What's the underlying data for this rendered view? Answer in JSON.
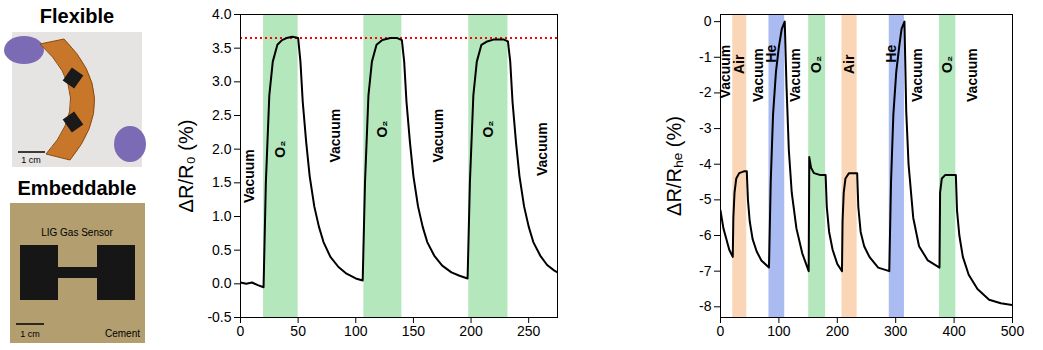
{
  "photos": [
    {
      "title": "Flexible",
      "scale_bar": "1 cm"
    },
    {
      "title": "Embeddable",
      "scale_bar": "1 cm",
      "labels": [
        "LIG Gas Sensor",
        "Cement"
      ]
    }
  ],
  "chart_data": [
    {
      "type": "line",
      "ylabel": "ΔR/R₀ (%)",
      "xlim": [
        0,
        275
      ],
      "xticks": [
        0,
        50,
        100,
        150,
        200,
        250
      ],
      "ylim": [
        -0.5,
        4.0
      ],
      "yticks": [
        -0.5,
        {
          "value": 0,
          "label": "0.0"
        },
        0.5,
        {
          "value": 1,
          "label": "1.0"
        },
        1.5,
        {
          "value": 2,
          "label": "2.0"
        },
        2.5,
        {
          "value": 3,
          "label": "3.0"
        },
        3.5,
        {
          "value": 4,
          "label": "4.0"
        }
      ],
      "bands": [
        {
          "x1": 20,
          "x2": 50,
          "color": "#5cc96b"
        },
        {
          "x1": 107,
          "x2": 140,
          "color": "#5cc96b"
        },
        {
          "x1": 198,
          "x2": 232,
          "color": "#5cc96b"
        }
      ],
      "reference_lines": [
        {
          "y": 3.65,
          "color": "#ff0000",
          "line_style": "dotted"
        }
      ],
      "annotations": [
        {
          "text": "Vacuum",
          "x": 8,
          "y": 1.6
        },
        {
          "text": "O₂",
          "x": 35,
          "y": 2.0
        },
        {
          "text": "Vacuum",
          "x": 82,
          "y": 2.2
        },
        {
          "text": "O₂",
          "x": 123,
          "y": 2.3
        },
        {
          "text": "Vacuum",
          "x": 172,
          "y": 2.2
        },
        {
          "text": "O₂",
          "x": 215,
          "y": 2.3
        },
        {
          "text": "Vacuum",
          "x": 262,
          "y": 2.0
        }
      ],
      "x": [
        0,
        5,
        10,
        15,
        20,
        22,
        25,
        28,
        32,
        36,
        40,
        45,
        50,
        52,
        54,
        57,
        60,
        64,
        68,
        72,
        78,
        85,
        92,
        100,
        106,
        108,
        111,
        114,
        118,
        123,
        130,
        136,
        140,
        142,
        144,
        147,
        150,
        154,
        158,
        162,
        168,
        175,
        183,
        190,
        197,
        199,
        202,
        205,
        209,
        214,
        220,
        228,
        232,
        234,
        236,
        239,
        242,
        246,
        250,
        254,
        260,
        266,
        272,
        275
      ],
      "series": [
        {
          "color": "#000000",
          "values": [
            0.02,
            0.0,
            0.02,
            -0.02,
            -0.05,
            1.5,
            2.8,
            3.3,
            3.55,
            3.62,
            3.65,
            3.67,
            3.65,
            3.3,
            2.7,
            2.1,
            1.6,
            1.15,
            0.85,
            0.62,
            0.4,
            0.25,
            0.15,
            0.08,
            0.05,
            1.5,
            2.8,
            3.3,
            3.55,
            3.62,
            3.65,
            3.65,
            3.62,
            3.3,
            2.7,
            2.1,
            1.6,
            1.15,
            0.85,
            0.62,
            0.42,
            0.27,
            0.17,
            0.12,
            0.08,
            1.5,
            2.8,
            3.3,
            3.55,
            3.6,
            3.63,
            3.63,
            3.6,
            3.3,
            2.7,
            2.1,
            1.6,
            1.15,
            0.85,
            0.62,
            0.42,
            0.28,
            0.2,
            0.17
          ]
        }
      ]
    },
    {
      "type": "line",
      "ylabel": "ΔR/Rₕₑ (%)",
      "xlim": [
        0,
        500
      ],
      "xticks": [
        0,
        100,
        200,
        300,
        400,
        500
      ],
      "ylim": [
        -8.3,
        0.2
      ],
      "yticks": [
        -8,
        -7,
        -6,
        -5,
        -4,
        -3,
        -2,
        -1,
        0
      ],
      "bands": [
        {
          "x1": 21,
          "x2": 45,
          "color": "#f4a460"
        },
        {
          "x1": 83,
          "x2": 110,
          "color": "#4169e1"
        },
        {
          "x1": 151,
          "x2": 180,
          "color": "#5cc96b"
        },
        {
          "x1": 208,
          "x2": 234,
          "color": "#f4a460"
        },
        {
          "x1": 289,
          "x2": 315,
          "color": "#4169e1"
        },
        {
          "x1": 375,
          "x2": 403,
          "color": "#5cc96b"
        }
      ],
      "annotations": [
        {
          "text": "Vacuum",
          "x": 9,
          "y": -1.4
        },
        {
          "text": "Air",
          "x": 33,
          "y": -1.2
        },
        {
          "text": "Vacuum",
          "x": 65,
          "y": -1.5
        },
        {
          "text": "He",
          "x": 88,
          "y": -0.9
        },
        {
          "text": "Vacuum",
          "x": 128,
          "y": -1.5
        },
        {
          "text": "O₂",
          "x": 165,
          "y": -1.2
        },
        {
          "text": "Air",
          "x": 221,
          "y": -1.2
        },
        {
          "text": "He",
          "x": 292,
          "y": -0.9
        },
        {
          "text": "Vacuum",
          "x": 338,
          "y": -1.5
        },
        {
          "text": "O₂",
          "x": 389,
          "y": -1.2
        },
        {
          "text": "Vacuum",
          "x": 432,
          "y": -1.5
        }
      ],
      "x": [
        0,
        5,
        10,
        15,
        21,
        22,
        24,
        27,
        32,
        40,
        45,
        47,
        50,
        55,
        62,
        70,
        83,
        86,
        90,
        95,
        100,
        105,
        110,
        113,
        117,
        122,
        130,
        140,
        151,
        152,
        155,
        160,
        170,
        180,
        182,
        186,
        192,
        200,
        208,
        209,
        211,
        214,
        220,
        234,
        236,
        240,
        246,
        255,
        270,
        289,
        292,
        296,
        301,
        306,
        310,
        315,
        318,
        322,
        330,
        340,
        355,
        375,
        376,
        379,
        385,
        403,
        405,
        409,
        415,
        425,
        440,
        460,
        480,
        500
      ],
      "series": [
        {
          "color": "#000000",
          "values": [
            -5.3,
            -5.8,
            -6.1,
            -6.4,
            -6.6,
            -5.5,
            -4.8,
            -4.4,
            -4.25,
            -4.2,
            -4.2,
            -5.0,
            -5.6,
            -6.1,
            -6.45,
            -6.7,
            -6.9,
            -4.5,
            -2.6,
            -1.4,
            -0.7,
            -0.2,
            0.0,
            -1.8,
            -3.6,
            -4.8,
            -5.8,
            -6.5,
            -7.0,
            -3.8,
            -4.1,
            -4.25,
            -4.3,
            -4.3,
            -5.2,
            -5.9,
            -6.4,
            -6.8,
            -7.0,
            -5.6,
            -4.8,
            -4.4,
            -4.25,
            -4.25,
            -5.2,
            -5.9,
            -6.3,
            -6.6,
            -6.9,
            -7.0,
            -4.5,
            -2.6,
            -1.4,
            -0.7,
            -0.2,
            0.0,
            -2.5,
            -4.0,
            -5.5,
            -6.3,
            -6.7,
            -6.9,
            -4.8,
            -4.4,
            -4.3,
            -4.3,
            -5.3,
            -6.0,
            -6.6,
            -7.1,
            -7.5,
            -7.8,
            -7.9,
            -7.95
          ]
        }
      ]
    }
  ]
}
